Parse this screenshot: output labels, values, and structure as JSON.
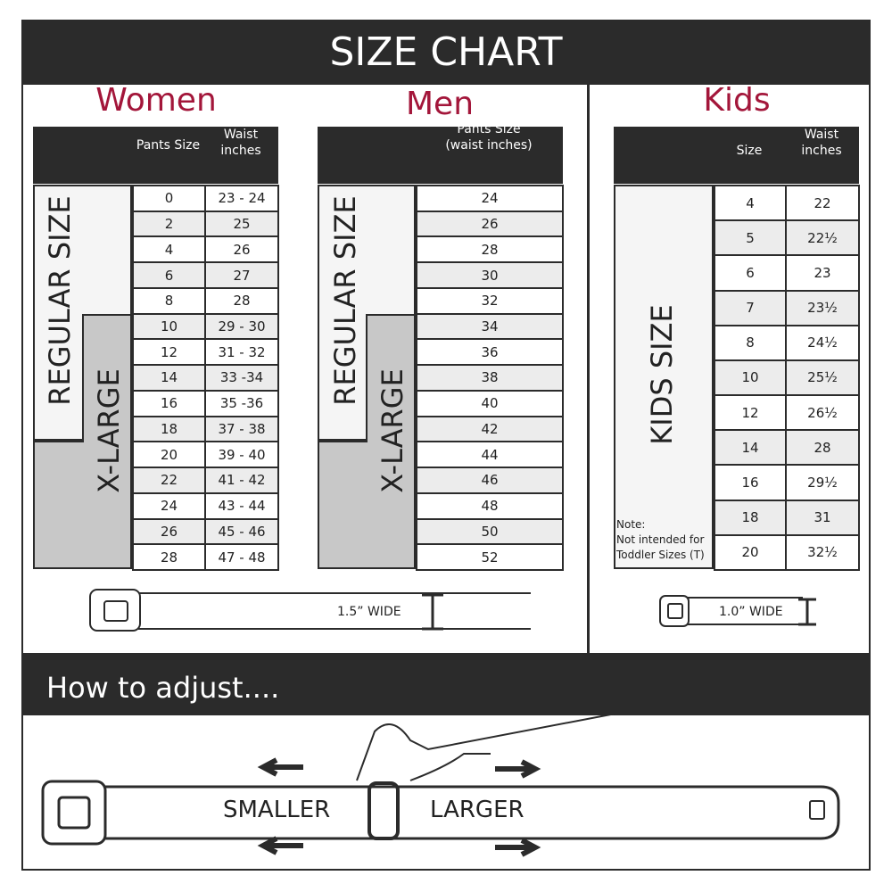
{
  "header": {
    "title": "SIZE CHART"
  },
  "women": {
    "title": "Women",
    "headers": [
      "Pants Size",
      "Waist\ninches"
    ],
    "groups": [
      "REGULAR SIZE",
      "X-LARGE"
    ],
    "rows": [
      [
        "0",
        "23 - 24"
      ],
      [
        "2",
        "25"
      ],
      [
        "4",
        "26"
      ],
      [
        "6",
        "27"
      ],
      [
        "8",
        "28"
      ],
      [
        "10",
        "29 - 30"
      ],
      [
        "12",
        "31 - 32"
      ],
      [
        "14",
        "33 -34"
      ],
      [
        "16",
        "35 -36"
      ],
      [
        "18",
        "37 - 38"
      ],
      [
        "20",
        "39 - 40"
      ],
      [
        "22",
        "41 - 42"
      ],
      [
        "24",
        "43 - 44"
      ],
      [
        "26",
        "45 - 46"
      ],
      [
        "28",
        "47 - 48"
      ]
    ],
    "belt_label": "1.5” WIDE"
  },
  "men": {
    "title": "Men",
    "headers": [
      "Pants Size\n(waist inches)"
    ],
    "groups": [
      "REGULAR SIZE",
      "X-LARGE"
    ],
    "rows": [
      [
        "24"
      ],
      [
        "26"
      ],
      [
        "28"
      ],
      [
        "30"
      ],
      [
        "32"
      ],
      [
        "34"
      ],
      [
        "36"
      ],
      [
        "38"
      ],
      [
        "40"
      ],
      [
        "42"
      ],
      [
        "44"
      ],
      [
        "46"
      ],
      [
        "48"
      ],
      [
        "50"
      ],
      [
        "52"
      ]
    ]
  },
  "kids": {
    "title": "Kids",
    "headers": [
      "Size",
      "Waist\ninches"
    ],
    "groups": [
      "KIDS SIZE"
    ],
    "note": "Note:\nNot intended for\nToddler Sizes (T)",
    "rows": [
      [
        "4",
        "22"
      ],
      [
        "5",
        "22½"
      ],
      [
        "6",
        "23"
      ],
      [
        "7",
        "23½"
      ],
      [
        "8",
        "24½"
      ],
      [
        "10",
        "25½"
      ],
      [
        "12",
        "26½"
      ],
      [
        "14",
        "28"
      ],
      [
        "16",
        "29½"
      ],
      [
        "18",
        "31"
      ],
      [
        "20",
        "32½"
      ]
    ],
    "belt_label": "1.0” WIDE"
  },
  "adjust": {
    "title": "How to adjust....",
    "smaller": "SMALLER",
    "larger": "LARGER"
  }
}
